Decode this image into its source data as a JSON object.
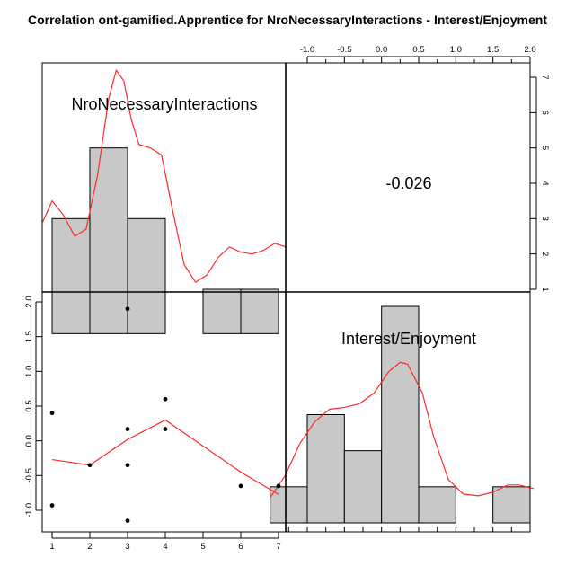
{
  "chart_data": {
    "type": "scatter-matrix",
    "title": "Correlation ont-gamified.Apprentice for NroNecessaryInteractions - Interest/Enjoyment",
    "variables": [
      "NroNecessaryInteractions",
      "Interest/Enjoyment"
    ],
    "correlation_label": "-0.026",
    "colors": {
      "bar_fill": "#c8c8c8",
      "curve": "#ff2a2a",
      "point": "#000000",
      "frame": "#000000"
    },
    "var1_histogram": {
      "bins": [
        [
          1,
          2,
          3
        ],
        [
          2,
          3,
          5
        ],
        [
          3,
          4,
          3
        ],
        [
          5,
          6,
          1
        ],
        [
          6,
          7,
          1
        ]
      ],
      "density_curve": [
        [
          0.75,
          2.9
        ],
        [
          1.0,
          3.5
        ],
        [
          1.3,
          3.1
        ],
        [
          1.6,
          2.5
        ],
        [
          1.9,
          2.7
        ],
        [
          2.2,
          4.2
        ],
        [
          2.5,
          6.4
        ],
        [
          2.7,
          7.2
        ],
        [
          2.9,
          6.9
        ],
        [
          3.1,
          5.8
        ],
        [
          3.3,
          5.1
        ],
        [
          3.6,
          5.0
        ],
        [
          3.9,
          4.8
        ],
        [
          4.2,
          3.2
        ],
        [
          4.5,
          1.7
        ],
        [
          4.8,
          1.2
        ],
        [
          5.1,
          1.4
        ],
        [
          5.4,
          1.9
        ],
        [
          5.7,
          2.2
        ],
        [
          6.0,
          2.05
        ],
        [
          6.3,
          2.0
        ],
        [
          6.6,
          2.1
        ],
        [
          6.9,
          2.3
        ],
        [
          7.2,
          2.2
        ]
      ],
      "count_ticks": [
        1,
        2,
        3,
        4,
        5,
        6,
        7
      ],
      "x_ticks": [
        1,
        2,
        3,
        4,
        5,
        6,
        7
      ]
    },
    "var2_histogram": {
      "bins": [
        [
          -1.5,
          -1.0,
          1
        ],
        [
          -1.0,
          -0.5,
          3
        ],
        [
          -0.5,
          0.0,
          2
        ],
        [
          0.0,
          0.5,
          6
        ],
        [
          0.5,
          1.0,
          1
        ],
        [
          1.5,
          2.0,
          1
        ]
      ],
      "density_curve": [
        [
          -1.5,
          0.7
        ],
        [
          -1.3,
          1.3
        ],
        [
          -1.1,
          2.2
        ],
        [
          -0.9,
          2.8
        ],
        [
          -0.7,
          3.15
        ],
        [
          -0.5,
          3.2
        ],
        [
          -0.3,
          3.3
        ],
        [
          -0.1,
          3.6
        ],
        [
          0.1,
          4.2
        ],
        [
          0.25,
          4.45
        ],
        [
          0.35,
          4.4
        ],
        [
          0.55,
          3.6
        ],
        [
          0.7,
          2.4
        ],
        [
          0.9,
          1.2
        ],
        [
          1.1,
          0.8
        ],
        [
          1.3,
          0.75
        ],
        [
          1.5,
          0.85
        ],
        [
          1.7,
          1.05
        ],
        [
          1.85,
          1.05
        ],
        [
          2.05,
          0.95
        ]
      ],
      "x_ticks": [
        "-1.0",
        "-0.5",
        "0.0",
        "0.5",
        "1.0",
        "1.5",
        "2.0"
      ]
    },
    "scatter": {
      "x_label": "NroNecessaryInteractions",
      "y_label": "Interest/Enjoyment",
      "points": [
        [
          1,
          0.4
        ],
        [
          1,
          -0.93
        ],
        [
          2,
          -0.35
        ],
        [
          3,
          1.9
        ],
        [
          3,
          0.17
        ],
        [
          3,
          -0.35
        ],
        [
          3,
          -1.15
        ],
        [
          4,
          0.6
        ],
        [
          4,
          0.17
        ],
        [
          6,
          -0.65
        ],
        [
          7,
          -0.65
        ]
      ],
      "smooth_line": [
        [
          1,
          -0.27
        ],
        [
          2,
          -0.35
        ],
        [
          3,
          0.02
        ],
        [
          4,
          0.3
        ],
        [
          6,
          -0.45
        ],
        [
          7,
          -0.77
        ]
      ],
      "x_ticks": [
        1,
        2,
        3,
        4,
        5,
        6,
        7
      ],
      "y_ticks": [
        "-1.0",
        "-0.5",
        "0.0",
        "0.5",
        "1.0",
        "1.5",
        "2.0"
      ]
    }
  }
}
